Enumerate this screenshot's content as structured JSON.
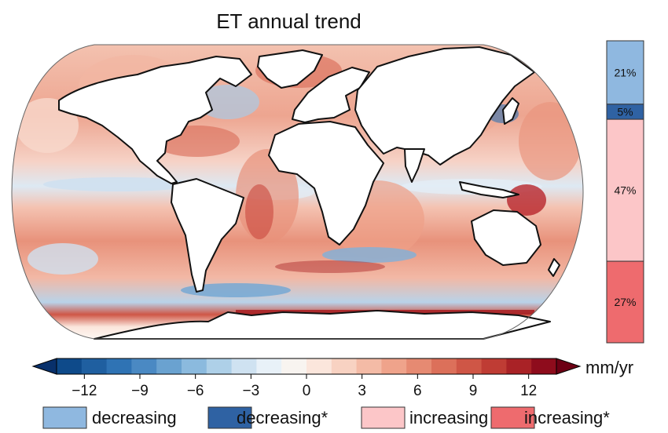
{
  "chart_data": {
    "type": "heatmap",
    "title": "ET annual trend",
    "units": "mm/yr",
    "colorbar": {
      "vmin": -15,
      "vmax": 15,
      "step": 1.5,
      "ticks": [
        -12,
        -9,
        -6,
        -3,
        0,
        3,
        6,
        9,
        12
      ],
      "tick_labels": [
        "−12",
        "−9",
        "−6",
        "−3",
        "0",
        "3",
        "6",
        "9",
        "12"
      ],
      "extend": "both",
      "colors": [
        "#08306b",
        "#0e4a8a",
        "#1f5fa0",
        "#2f73b4",
        "#4a89c3",
        "#6aa2d0",
        "#8bbade",
        "#aed0e8",
        "#cfe2f1",
        "#e8f1f8",
        "#f8f4f0",
        "#fbe6dc",
        "#f8d2c2",
        "#f4bba6",
        "#efa38b",
        "#e68a72",
        "#dc705a",
        "#cf5646",
        "#bf3c34",
        "#a92226",
        "#8e0c1c",
        "#6d0014"
      ]
    },
    "trend_categories": [
      {
        "label": "decreasing",
        "percent": 21,
        "percent_label": "21%",
        "color": "#8fb8e0"
      },
      {
        "label": "decreasing*",
        "percent": 5,
        "percent_label": "5%",
        "color": "#2f62a3"
      },
      {
        "label": "increasing",
        "percent": 47,
        "percent_label": "47%",
        "color": "#fcc6c8"
      },
      {
        "label": "increasing*",
        "percent": 27,
        "percent_label": "27%",
        "color": "#ee6b6e"
      }
    ]
  }
}
